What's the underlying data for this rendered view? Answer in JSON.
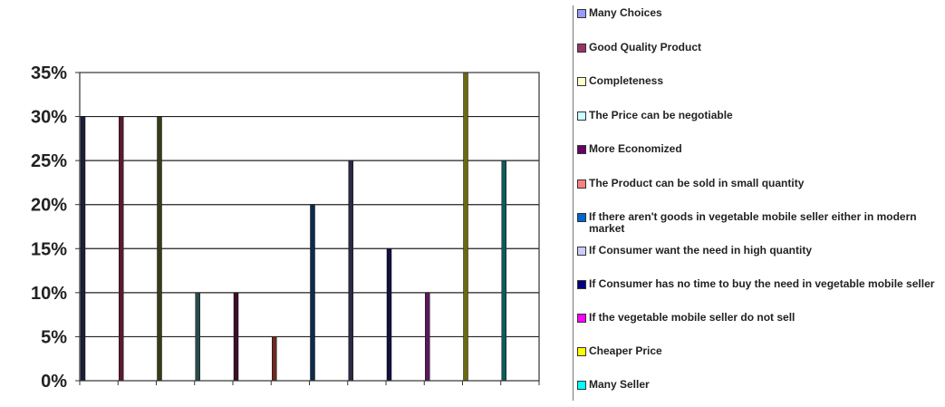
{
  "chart_data": {
    "type": "bar",
    "ylim": [
      0,
      35
    ],
    "yticks": [
      "0%",
      "5%",
      "10%",
      "15%",
      "20%",
      "25%",
      "30%",
      "35%"
    ],
    "grid": true,
    "legend_position": "right",
    "series": [
      {
        "name": "Many Choices",
        "color": "#1a1f3a",
        "values": [
          30
        ]
      },
      {
        "name": "Good Quality Product",
        "color": "#5a1a2e",
        "values": [
          30
        ]
      },
      {
        "name": "Completeness",
        "color": "#3a3a1a",
        "values": [
          30
        ]
      },
      {
        "name": "The Price can be negotiable",
        "color": "#2a4a4a",
        "values": [
          10
        ]
      },
      {
        "name": "More Economized",
        "color": "#3a0f2a",
        "values": [
          10
        ]
      },
      {
        "name": "The Product can be sold in small quantity",
        "color": "#6a2a22",
        "values": [
          5
        ]
      },
      {
        "name": "If there aren't goods in vegetable mobile seller either in modern market",
        "color": "#0f2a4a",
        "values": [
          20
        ]
      },
      {
        "name": "If Consumer want the need in high quantity",
        "color": "#2a2a44",
        "values": [
          25
        ]
      },
      {
        "name": "If Consumer has no time to buy the need in vegetable mobile seller",
        "color": "#101040",
        "values": [
          15
        ]
      },
      {
        "name": "If the vegetable mobile seller do not sell",
        "color": "#5a1a5a",
        "values": [
          10
        ]
      },
      {
        "name": "Cheaper Price",
        "color": "#6a6a10",
        "values": [
          35
        ]
      },
      {
        "name": "Many Seller",
        "color": "#105a5a",
        "values": [
          25
        ]
      }
    ],
    "legend_swatch_colors": [
      "#9999ff",
      "#993366",
      "#ffffcc",
      "#ccffff",
      "#660066",
      "#ff8080",
      "#0066cc",
      "#ccccff",
      "#000080",
      "#ff00ff",
      "#ffff00",
      "#00ffff"
    ]
  }
}
